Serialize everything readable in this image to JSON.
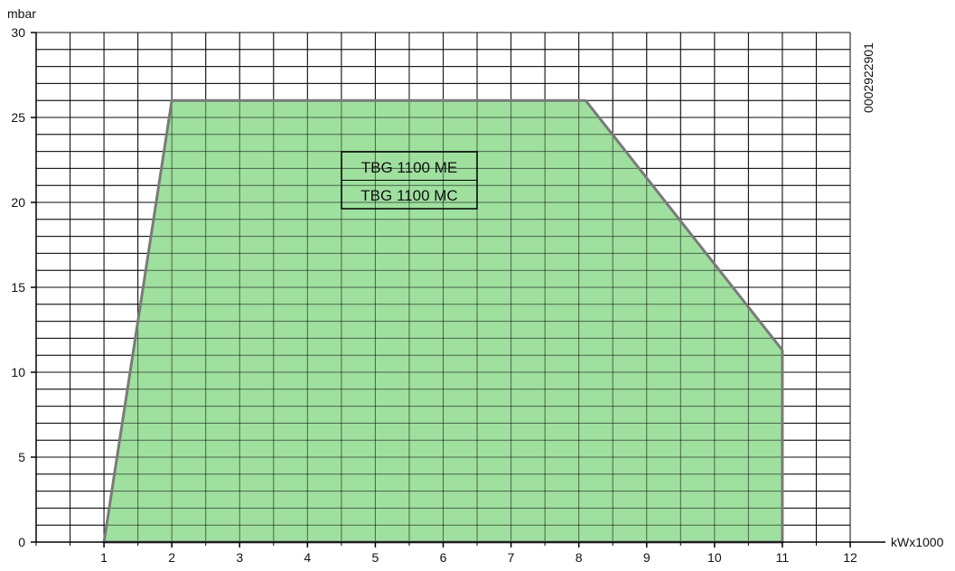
{
  "chart_data": {
    "type": "area",
    "title": "",
    "xlabel": "kWx1000",
    "ylabel": "mbar",
    "xlim": [
      0,
      12
    ],
    "ylim": [
      0,
      30
    ],
    "x_ticks": [
      1,
      2,
      3,
      4,
      5,
      6,
      7,
      8,
      9,
      10,
      11,
      12
    ],
    "y_ticks": [
      0,
      5,
      10,
      15,
      20,
      25,
      30
    ],
    "grid": true,
    "series": [
      {
        "x": [
          1,
          2,
          8.1,
          11,
          11,
          1
        ],
        "y": [
          0,
          26,
          26,
          11.3,
          0,
          0
        ]
      }
    ],
    "legend_entries": [
      "TBG 1100 ME",
      "TBG 1100 MC"
    ],
    "legend_position": "top-center",
    "side_code": "0002922901",
    "colors": {
      "fill": "#9fe09f",
      "outline": "#7a7a7a",
      "grid": "#000000"
    }
  }
}
